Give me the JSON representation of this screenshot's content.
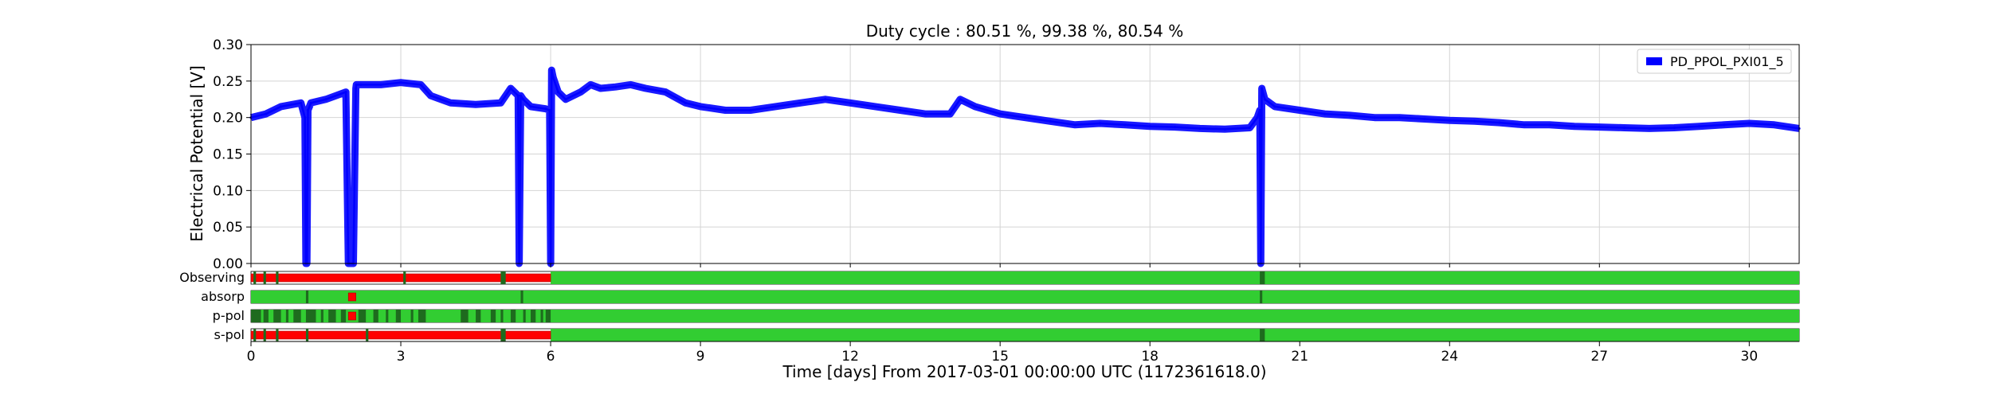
{
  "chart_data": {
    "type": "line",
    "title": "Duty cycle : 80.51 %, 99.38 %, 80.54 %",
    "ylabel": "Electrical Potential [V]",
    "xlabel": "Time [days] From 2017-03-01 00:00:00 UTC (1172361618.0)",
    "xlim": [
      0,
      31
    ],
    "ylim": [
      0,
      0.3
    ],
    "grid": true,
    "legend_position": "top-right",
    "x_ticks": [
      0,
      3,
      6,
      9,
      12,
      15,
      18,
      21,
      24,
      27,
      30
    ],
    "x_tick_labels": [
      "0",
      "3",
      "6",
      "9",
      "12",
      "15",
      "18",
      "21",
      "24",
      "27",
      "30"
    ],
    "y_ticks": [
      0,
      0.05,
      0.1,
      0.15,
      0.2,
      0.25,
      0.3
    ],
    "y_tick_labels": [
      "0.00",
      "0.05",
      "0.10",
      "0.15",
      "0.20",
      "0.25",
      "0.30"
    ],
    "series": [
      {
        "name": "PD_PPOL_PXI01_5",
        "color": "#0000ff",
        "x": [
          0,
          0.3,
          0.6,
          1.0,
          1.08,
          1.1,
          1.12,
          1.14,
          1.2,
          1.5,
          1.9,
          1.95,
          1.96,
          2.05,
          2.1,
          2.11,
          2.2,
          2.6,
          3.0,
          3.4,
          3.6,
          4.0,
          4.5,
          5.0,
          5.2,
          5.35,
          5.37,
          5.4,
          5.45,
          5.6,
          5.9,
          5.98,
          6.0,
          6.02,
          6.05,
          6.15,
          6.3,
          6.6,
          6.8,
          7.0,
          7.3,
          7.6,
          7.9,
          8.3,
          8.7,
          9.0,
          9.5,
          10.0,
          10.5,
          11.0,
          11.5,
          12.0,
          12.5,
          13.0,
          13.5,
          14.0,
          14.2,
          14.5,
          15.0,
          15.5,
          16.0,
          16.5,
          17.0,
          17.5,
          18.0,
          18.5,
          19.0,
          19.5,
          20.0,
          20.15,
          20.2,
          20.22,
          20.24,
          20.3,
          20.5,
          21.0,
          21.5,
          22.0,
          22.5,
          23.0,
          23.5,
          24.0,
          24.5,
          25.0,
          25.5,
          26.0,
          26.5,
          27.0,
          27.5,
          28.0,
          28.5,
          29.0,
          29.5,
          30.0,
          30.5,
          31.0
        ],
        "y": [
          0.2,
          0.205,
          0.215,
          0.22,
          0.2,
          0.0,
          0.0,
          0.21,
          0.22,
          0.225,
          0.235,
          0.0,
          0.0,
          0.0,
          0.24,
          0.245,
          0.245,
          0.245,
          0.248,
          0.245,
          0.23,
          0.22,
          0.218,
          0.22,
          0.24,
          0.23,
          0.0,
          0.23,
          0.225,
          0.215,
          0.212,
          0.21,
          0.0,
          0.265,
          0.255,
          0.235,
          0.225,
          0.235,
          0.245,
          0.24,
          0.242,
          0.245,
          0.24,
          0.235,
          0.22,
          0.215,
          0.21,
          0.21,
          0.215,
          0.22,
          0.225,
          0.22,
          0.215,
          0.21,
          0.205,
          0.205,
          0.225,
          0.215,
          0.205,
          0.2,
          0.195,
          0.19,
          0.192,
          0.19,
          0.188,
          0.187,
          0.185,
          0.184,
          0.186,
          0.2,
          0.21,
          0.0,
          0.24,
          0.225,
          0.215,
          0.21,
          0.205,
          0.203,
          0.2,
          0.2,
          0.198,
          0.196,
          0.195,
          0.193,
          0.19,
          0.19,
          0.188,
          0.187,
          0.186,
          0.185,
          0.186,
          0.188,
          0.19,
          0.192,
          0.19,
          0.185
        ]
      }
    ],
    "segment_rows": [
      {
        "label": "Observing",
        "base_color": "#32cd32",
        "active": [
          [
            6.0,
            31.0
          ]
        ],
        "red": [
          [
            0.0,
            6.0
          ]
        ],
        "dark": [
          [
            0.05,
            0.1
          ],
          [
            0.25,
            0.3
          ],
          [
            0.5,
            0.55
          ],
          [
            3.05,
            3.1
          ],
          [
            5.0,
            5.1
          ],
          [
            20.2,
            20.3
          ]
        ]
      },
      {
        "label": "absorp",
        "base_color": "#32cd32",
        "active": [
          [
            0.0,
            31.0
          ]
        ],
        "red": [
          [
            1.95,
            2.1
          ]
        ],
        "dark": [
          [
            1.1,
            1.15
          ],
          [
            5.4,
            5.45
          ],
          [
            20.2,
            20.25
          ]
        ]
      },
      {
        "label": "p-pol",
        "base_color": "#32cd32",
        "active": [
          [
            0.0,
            31.0
          ]
        ],
        "red": [
          [
            1.95,
            2.1
          ]
        ],
        "dark": [
          [
            0.0,
            0.2
          ],
          [
            0.25,
            0.35
          ],
          [
            0.45,
            0.6
          ],
          [
            0.7,
            0.75
          ],
          [
            0.85,
            1.0
          ],
          [
            1.1,
            1.3
          ],
          [
            1.4,
            1.45
          ],
          [
            1.55,
            1.7
          ],
          [
            1.8,
            1.9
          ],
          [
            2.15,
            2.3
          ],
          [
            2.45,
            2.55
          ],
          [
            2.7,
            2.75
          ],
          [
            2.9,
            3.0
          ],
          [
            3.2,
            3.25
          ],
          [
            3.35,
            3.5
          ],
          [
            4.2,
            4.35
          ],
          [
            4.5,
            4.6
          ],
          [
            4.8,
            4.9
          ],
          [
            5.0,
            5.05
          ],
          [
            5.2,
            5.3
          ],
          [
            5.45,
            5.5
          ],
          [
            5.6,
            5.7
          ],
          [
            5.8,
            5.85
          ],
          [
            5.9,
            6.0
          ]
        ]
      },
      {
        "label": "s-pol",
        "base_color": "#32cd32",
        "active": [
          [
            6.0,
            31.0
          ]
        ],
        "red": [
          [
            0.0,
            6.0
          ]
        ],
        "dark": [
          [
            0.05,
            0.1
          ],
          [
            0.25,
            0.3
          ],
          [
            0.5,
            0.55
          ],
          [
            1.1,
            1.15
          ],
          [
            2.3,
            2.35
          ],
          [
            5.0,
            5.1
          ],
          [
            20.2,
            20.3
          ]
        ]
      }
    ]
  }
}
